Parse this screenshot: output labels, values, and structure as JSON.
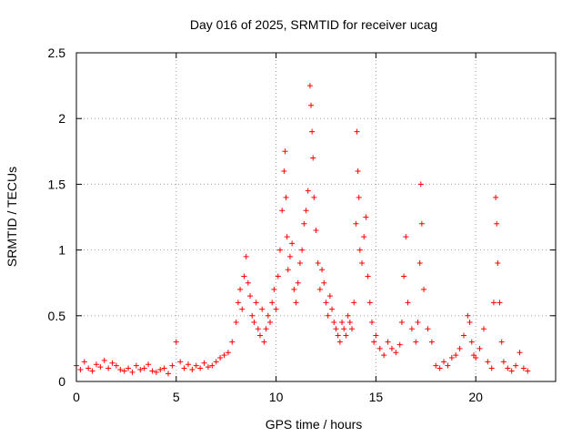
{
  "chart_data": {
    "type": "scatter",
    "title": "Day 016 of 2025, SRMTID for receiver ucag",
    "xlabel": "GPS time / hours",
    "ylabel": "SRMTID / TECUs",
    "xlim": [
      0,
      24
    ],
    "ylim": [
      0,
      2.5
    ],
    "x_ticks": [
      "0",
      "5",
      "10",
      "15",
      "20"
    ],
    "x_tick_values": [
      0,
      5,
      10,
      15,
      20
    ],
    "y_ticks": [
      "0",
      "0.5",
      "1",
      "1.5",
      "2",
      "2.5"
    ],
    "y_tick_values": [
      0,
      0.5,
      1,
      1.5,
      2,
      2.5
    ],
    "grid": true,
    "marker": "plus",
    "marker_color": "#ff0000",
    "series": [
      {
        "name": "SRMTID",
        "x": [
          0.0,
          0.2,
          0.4,
          0.6,
          0.8,
          1.0,
          1.2,
          1.4,
          1.6,
          1.8,
          2.0,
          2.2,
          2.4,
          2.6,
          2.8,
          3.0,
          3.2,
          3.4,
          3.6,
          3.8,
          4.0,
          4.2,
          4.4,
          4.6,
          4.8,
          5.0,
          5.2,
          5.4,
          5.6,
          5.8,
          6.0,
          6.2,
          6.4,
          6.6,
          6.8,
          7.0,
          7.2,
          7.4,
          7.6,
          7.8,
          8.0,
          8.1,
          8.2,
          8.3,
          8.4,
          8.5,
          8.6,
          8.7,
          8.8,
          8.9,
          9.0,
          9.1,
          9.2,
          9.3,
          9.4,
          9.5,
          9.6,
          9.7,
          9.8,
          9.9,
          10.0,
          10.1,
          10.2,
          10.3,
          10.4,
          10.45,
          10.5,
          10.55,
          10.6,
          10.7,
          10.8,
          10.9,
          11.0,
          11.1,
          11.2,
          11.3,
          11.4,
          11.5,
          11.6,
          11.7,
          11.75,
          11.8,
          11.85,
          11.9,
          12.0,
          12.1,
          12.2,
          12.3,
          12.4,
          12.5,
          12.6,
          12.7,
          12.8,
          12.9,
          13.0,
          13.1,
          13.2,
          13.3,
          13.4,
          13.5,
          13.6,
          13.7,
          13.8,
          13.9,
          14.0,
          14.05,
          14.1,
          14.15,
          14.2,
          14.3,
          14.4,
          14.5,
          14.6,
          14.7,
          14.8,
          14.9,
          15.0,
          15.2,
          15.4,
          15.6,
          15.8,
          16.0,
          16.2,
          16.3,
          16.4,
          16.5,
          16.6,
          16.8,
          17.0,
          17.1,
          17.2,
          17.25,
          17.3,
          17.4,
          17.6,
          17.8,
          18.0,
          18.2,
          18.4,
          18.6,
          18.8,
          19.0,
          19.2,
          19.4,
          19.6,
          19.7,
          19.8,
          19.9,
          20.0,
          20.2,
          20.4,
          20.6,
          20.8,
          20.9,
          21.0,
          21.05,
          21.1,
          21.2,
          21.3,
          21.4,
          21.6,
          21.8,
          22.0,
          22.2,
          22.4,
          22.6
        ],
        "y": [
          0.12,
          0.09,
          0.15,
          0.1,
          0.08,
          0.13,
          0.11,
          0.16,
          0.1,
          0.14,
          0.12,
          0.09,
          0.08,
          0.1,
          0.07,
          0.12,
          0.09,
          0.1,
          0.13,
          0.08,
          0.07,
          0.09,
          0.1,
          0.06,
          0.12,
          0.3,
          0.15,
          0.1,
          0.13,
          0.09,
          0.12,
          0.1,
          0.14,
          0.11,
          0.12,
          0.15,
          0.18,
          0.2,
          0.22,
          0.3,
          0.45,
          0.6,
          0.7,
          0.55,
          0.8,
          0.95,
          0.75,
          0.65,
          0.5,
          0.45,
          0.6,
          0.4,
          0.35,
          0.55,
          0.3,
          0.4,
          0.5,
          0.45,
          0.6,
          0.7,
          0.55,
          0.8,
          1.0,
          1.3,
          1.6,
          1.75,
          1.4,
          1.1,
          0.85,
          0.95,
          1.05,
          0.7,
          0.6,
          0.75,
          0.9,
          1.0,
          1.2,
          1.3,
          1.45,
          2.25,
          2.1,
          1.9,
          1.7,
          1.4,
          1.15,
          0.9,
          0.7,
          0.85,
          0.75,
          0.6,
          0.5,
          0.65,
          0.55,
          0.45,
          0.4,
          0.35,
          0.3,
          0.45,
          0.4,
          0.35,
          0.5,
          0.45,
          0.4,
          0.6,
          1.2,
          1.9,
          1.6,
          1.4,
          1.0,
          0.9,
          1.1,
          1.25,
          0.8,
          0.6,
          0.45,
          0.3,
          0.35,
          0.25,
          0.2,
          0.3,
          0.25,
          0.22,
          0.28,
          0.45,
          0.8,
          1.1,
          0.6,
          0.4,
          0.3,
          0.45,
          0.9,
          1.5,
          1.2,
          0.7,
          0.4,
          0.3,
          0.12,
          0.1,
          0.15,
          0.12,
          0.18,
          0.2,
          0.25,
          0.35,
          0.5,
          0.45,
          0.3,
          0.2,
          0.18,
          0.25,
          0.4,
          0.15,
          0.1,
          0.6,
          1.4,
          1.2,
          0.9,
          0.6,
          0.3,
          0.15,
          0.1,
          0.08,
          0.12,
          0.22,
          0.1,
          0.08
        ]
      }
    ]
  }
}
